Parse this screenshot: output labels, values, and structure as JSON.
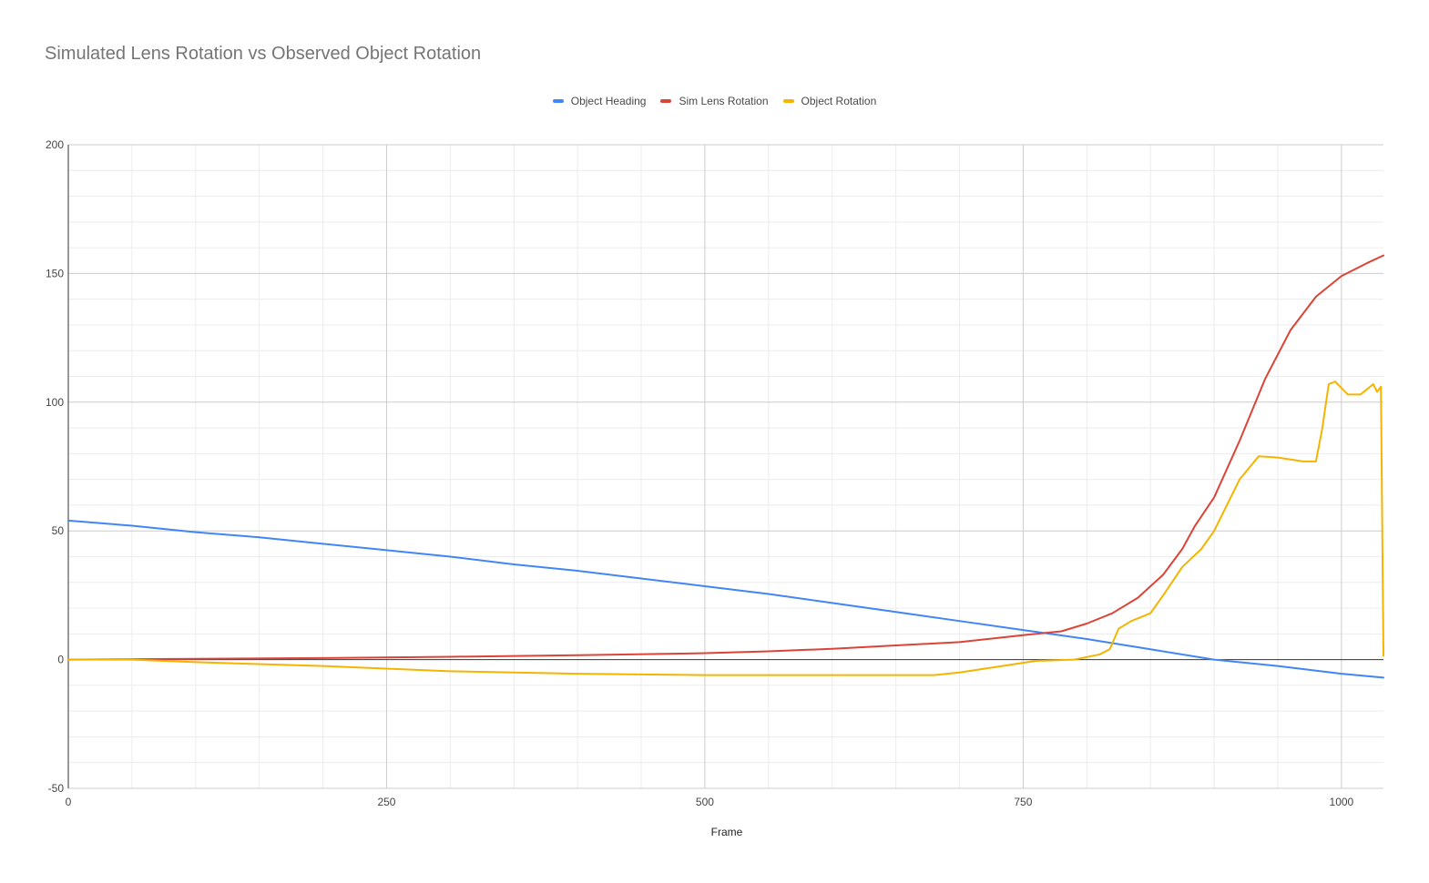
{
  "chart_data": {
    "type": "line",
    "title": "Simulated Lens Rotation vs Observed Object Rotation",
    "xlabel": "Frame",
    "ylabel": "",
    "xlim": [
      0,
      1033
    ],
    "ylim": [
      -50,
      200
    ],
    "x_ticks": [
      0,
      250,
      500,
      750,
      1000
    ],
    "x_tick_labels": [
      "0",
      "250",
      "500",
      "750",
      "1000"
    ],
    "y_ticks": [
      -50,
      0,
      50,
      100,
      150,
      200
    ],
    "y_tick_labels": [
      "-50",
      "0",
      "50",
      "100",
      "150",
      "200"
    ],
    "grid": true,
    "legend_position": "top-center",
    "series": [
      {
        "name": "Object Heading",
        "color": "#4285F4",
        "points": [
          [
            0,
            54
          ],
          [
            50,
            52
          ],
          [
            100,
            49.5
          ],
          [
            150,
            47.5
          ],
          [
            200,
            45
          ],
          [
            250,
            42.5
          ],
          [
            300,
            40
          ],
          [
            350,
            37
          ],
          [
            400,
            34.5
          ],
          [
            450,
            31.5
          ],
          [
            500,
            28.5
          ],
          [
            550,
            25.5
          ],
          [
            600,
            22
          ],
          [
            650,
            18.5
          ],
          [
            700,
            15
          ],
          [
            750,
            11.5
          ],
          [
            800,
            8
          ],
          [
            850,
            4
          ],
          [
            900,
            0
          ],
          [
            950,
            -2.5
          ],
          [
            1000,
            -5.5
          ],
          [
            1033,
            -7
          ]
        ]
      },
      {
        "name": "Sim Lens Rotation",
        "color": "#DB4437",
        "points": [
          [
            0,
            0
          ],
          [
            100,
            0.3
          ],
          [
            200,
            0.6
          ],
          [
            300,
            1.1
          ],
          [
            400,
            1.7
          ],
          [
            500,
            2.5
          ],
          [
            550,
            3.2
          ],
          [
            600,
            4.2
          ],
          [
            650,
            5.5
          ],
          [
            700,
            6.8
          ],
          [
            750,
            9.5
          ],
          [
            780,
            11
          ],
          [
            800,
            14
          ],
          [
            820,
            18
          ],
          [
            840,
            24
          ],
          [
            860,
            33
          ],
          [
            875,
            43
          ],
          [
            885,
            52
          ],
          [
            900,
            63
          ],
          [
            920,
            85
          ],
          [
            940,
            109
          ],
          [
            960,
            128
          ],
          [
            980,
            141
          ],
          [
            1000,
            149
          ],
          [
            1020,
            154
          ],
          [
            1033,
            157
          ]
        ]
      },
      {
        "name": "Object Rotation",
        "color": "#F4B400",
        "points": [
          [
            0,
            0
          ],
          [
            50,
            0
          ],
          [
            100,
            -1
          ],
          [
            200,
            -2.5
          ],
          [
            300,
            -4.5
          ],
          [
            400,
            -5.5
          ],
          [
            500,
            -6
          ],
          [
            600,
            -6
          ],
          [
            680,
            -6
          ],
          [
            700,
            -5
          ],
          [
            720,
            -3.5
          ],
          [
            740,
            -2
          ],
          [
            760,
            -0.5
          ],
          [
            790,
            0
          ],
          [
            810,
            2
          ],
          [
            818,
            4
          ],
          [
            825,
            12
          ],
          [
            835,
            15
          ],
          [
            850,
            18
          ],
          [
            860,
            25
          ],
          [
            875,
            36
          ],
          [
            890,
            43
          ],
          [
            900,
            50
          ],
          [
            920,
            70
          ],
          [
            935,
            79
          ],
          [
            950,
            78.5
          ],
          [
            970,
            77
          ],
          [
            980,
            77
          ],
          [
            985,
            90
          ],
          [
            990,
            107
          ],
          [
            995,
            108
          ],
          [
            1005,
            103
          ],
          [
            1015,
            103
          ],
          [
            1025,
            107
          ],
          [
            1028,
            104
          ],
          [
            1031,
            106
          ],
          [
            1033,
            1.5
          ]
        ]
      }
    ]
  }
}
